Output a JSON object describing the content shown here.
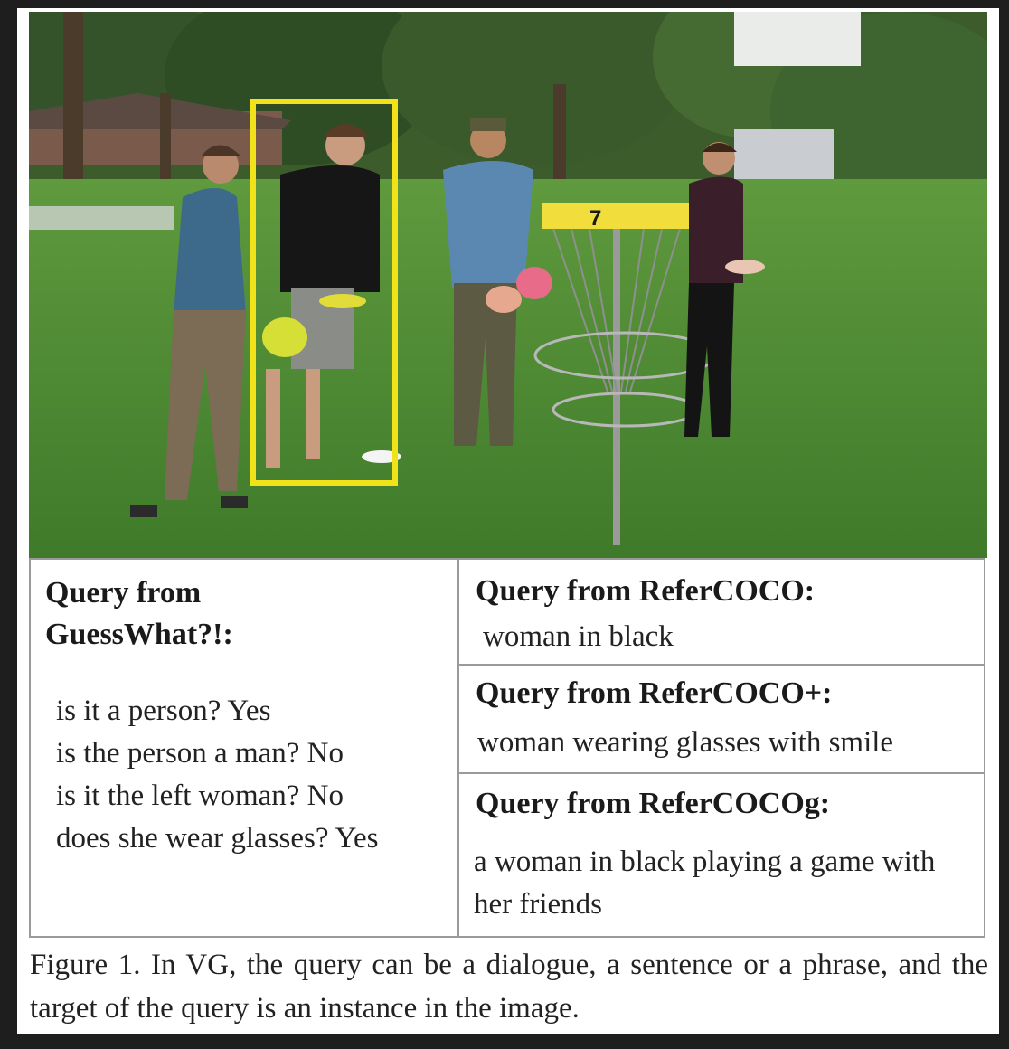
{
  "photo": {
    "basket_number": "7",
    "box_color": "#f2e21a"
  },
  "table": {
    "left": {
      "heading_line1": "Query from",
      "heading_line2": "GuessWhat?!:",
      "dialogue": [
        "is it a person? Yes",
        "is the person a man? No",
        "is it the left woman? No",
        "does she wear glasses? Yes"
      ]
    },
    "right": [
      {
        "heading": "Query from ReferCOCO:",
        "text": "woman in black"
      },
      {
        "heading": "Query from ReferCOCO+:",
        "text": "woman wearing glasses with smile"
      },
      {
        "heading": "Query from ReferCOCOg:",
        "text": "a woman in black playing a game with her friends"
      }
    ]
  },
  "caption": "Figure 1. In VG, the query can be a dialogue, a sentence or a phrase, and the target of the query is an instance in the image."
}
